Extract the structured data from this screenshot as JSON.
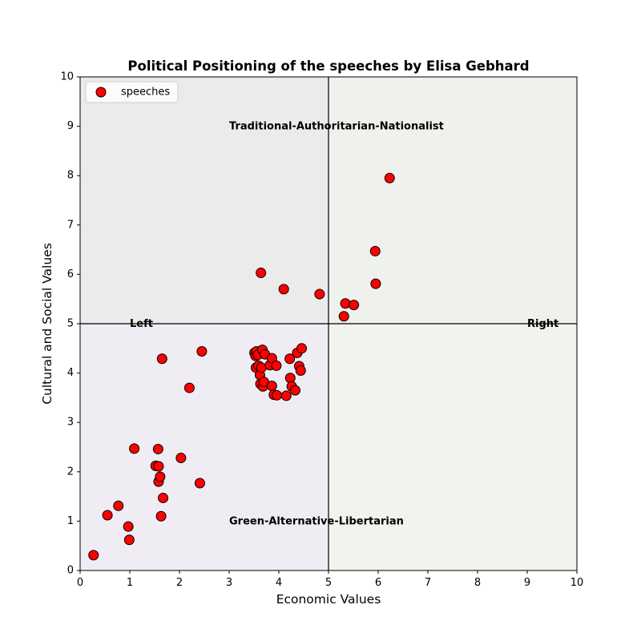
{
  "chart_data": {
    "type": "scatter",
    "title": "Political Positioning of the speeches by Elisa Gebhard",
    "xlabel": "Economic Values",
    "ylabel": "Cultural and Social Values",
    "xlim": [
      0,
      10
    ],
    "ylim": [
      0,
      10
    ],
    "xticks": [
      "0",
      "1",
      "2",
      "3",
      "4",
      "5",
      "6",
      "7",
      "8",
      "9",
      "10"
    ],
    "yticks": [
      "0",
      "1",
      "2",
      "3",
      "4",
      "5",
      "6",
      "7",
      "8",
      "9",
      "10"
    ],
    "grid": false,
    "legend": {
      "position": "top-left",
      "entries": [
        "speeches"
      ]
    },
    "quadrants": [
      {
        "x": [
          0,
          5
        ],
        "y": [
          5,
          10
        ],
        "color": "#ebebeb"
      },
      {
        "x": [
          5,
          10
        ],
        "y": [
          5,
          10
        ],
        "color": "#eff1ec"
      },
      {
        "x": [
          0,
          5
        ],
        "y": [
          0,
          5
        ],
        "color": "#efedf3"
      },
      {
        "x": [
          5,
          10
        ],
        "y": [
          0,
          5
        ],
        "color": "#f2f3ef"
      }
    ],
    "reference_lines": {
      "x": 5,
      "y": 5
    },
    "annotations": [
      {
        "text": "Traditional-Authoritarian-Nationalist",
        "x": 3.0,
        "y": 9.0
      },
      {
        "text": "Green-Alternative-Libertarian",
        "x": 3.0,
        "y": 1.0
      },
      {
        "text": "Left",
        "x": 1.0,
        "y": 5.0
      },
      {
        "text": "Right",
        "x": 9.0,
        "y": 5.0
      }
    ],
    "series": [
      {
        "name": "speeches",
        "color": "#ff0000",
        "edgecolor": "#000000",
        "points": [
          [
            0.27,
            0.31
          ],
          [
            0.55,
            1.12
          ],
          [
            0.77,
            1.31
          ],
          [
            0.97,
            0.89
          ],
          [
            0.99,
            0.62
          ],
          [
            1.09,
            2.47
          ],
          [
            1.52,
            2.12
          ],
          [
            1.57,
            2.46
          ],
          [
            1.58,
            2.11
          ],
          [
            1.58,
            1.8
          ],
          [
            1.61,
            1.9
          ],
          [
            1.63,
            1.1
          ],
          [
            1.65,
            4.29
          ],
          [
            1.67,
            1.47
          ],
          [
            2.03,
            2.28
          ],
          [
            2.2,
            3.7
          ],
          [
            2.41,
            1.77
          ],
          [
            2.45,
            4.44
          ],
          [
            3.51,
            4.41
          ],
          [
            3.53,
            4.35
          ],
          [
            3.54,
            4.11
          ],
          [
            3.55,
            4.44
          ],
          [
            3.58,
            4.37
          ],
          [
            3.59,
            4.15
          ],
          [
            3.62,
            3.96
          ],
          [
            3.63,
            3.78
          ],
          [
            3.65,
            4.11
          ],
          [
            3.67,
            4.47
          ],
          [
            3.68,
            3.73
          ],
          [
            3.7,
            3.82
          ],
          [
            3.72,
            4.38
          ],
          [
            3.82,
            4.16
          ],
          [
            3.86,
            4.3
          ],
          [
            3.86,
            3.74
          ],
          [
            3.9,
            3.56
          ],
          [
            3.95,
            4.15
          ],
          [
            3.96,
            3.55
          ],
          [
            4.15,
            3.54
          ],
          [
            4.22,
            4.29
          ],
          [
            4.23,
            3.9
          ],
          [
            4.26,
            3.73
          ],
          [
            4.33,
            3.65
          ],
          [
            4.37,
            4.41
          ],
          [
            4.41,
            4.14
          ],
          [
            4.44,
            4.05
          ],
          [
            4.46,
            4.5
          ],
          [
            3.64,
            6.03
          ],
          [
            4.1,
            5.7
          ],
          [
            4.82,
            5.6
          ],
          [
            5.31,
            5.15
          ],
          [
            5.34,
            5.41
          ],
          [
            5.51,
            5.38
          ],
          [
            5.94,
            6.47
          ],
          [
            5.95,
            5.81
          ],
          [
            6.23,
            7.95
          ]
        ]
      }
    ]
  }
}
